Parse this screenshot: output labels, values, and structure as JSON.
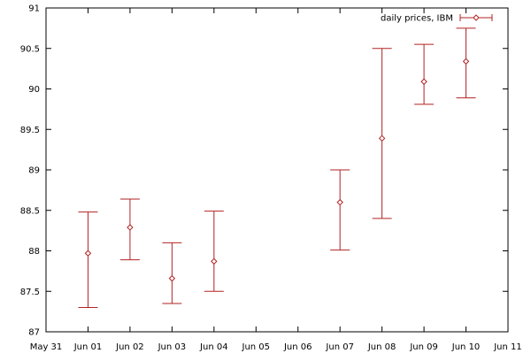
{
  "chart_data": {
    "type": "errorbar",
    "series": [
      {
        "name": "daily prices, IBM",
        "x": [
          "Jun 01",
          "Jun 02",
          "Jun 03",
          "Jun 04",
          "Jun 07",
          "Jun 08",
          "Jun 09",
          "Jun 10"
        ],
        "values": [
          87.97,
          88.29,
          87.66,
          87.87,
          88.6,
          89.39,
          90.09,
          90.34
        ],
        "low": [
          87.3,
          87.89,
          87.35,
          87.5,
          88.01,
          88.4,
          89.81,
          89.89
        ],
        "high": [
          88.48,
          88.64,
          88.1,
          88.49,
          89.0,
          90.5,
          90.55,
          90.75
        ]
      }
    ],
    "x_ticks": [
      "May 31",
      "Jun 01",
      "Jun 02",
      "Jun 03",
      "Jun 04",
      "Jun 05",
      "Jun 06",
      "Jun 07",
      "Jun 08",
      "Jun 09",
      "Jun 10",
      "Jun 11"
    ],
    "y_ticks": [
      "87",
      "87.5",
      "88",
      "88.5",
      "89",
      "89.5",
      "90",
      "90.5",
      "91"
    ],
    "xlim": [
      "May 31",
      "Jun 11"
    ],
    "ylim": [
      87,
      91
    ],
    "grid": false,
    "legend": "top-right",
    "colors": {
      "series": "#b22222",
      "axis": "#000000"
    }
  }
}
